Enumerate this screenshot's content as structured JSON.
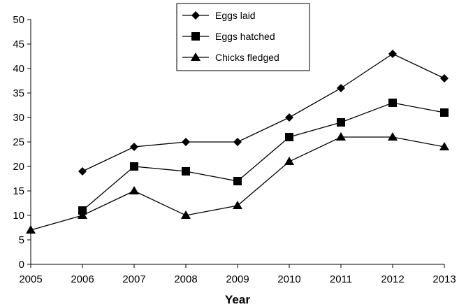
{
  "chart_data": {
    "type": "line",
    "title": "",
    "xlabel": "Year",
    "ylabel": "",
    "x": [
      2005,
      2006,
      2007,
      2008,
      2009,
      2010,
      2011,
      2012,
      2013
    ],
    "xlim": [
      2005,
      2013
    ],
    "ylim": [
      0,
      50
    ],
    "ytick_step": 5,
    "grid": false,
    "legend_position": "top-center",
    "series": [
      {
        "name": "Eggs laid",
        "marker": "diamond",
        "color": "#000000",
        "values": [
          null,
          19,
          24,
          25,
          25,
          30,
          36,
          43,
          38
        ]
      },
      {
        "name": "Eggs hatched",
        "marker": "square",
        "color": "#000000",
        "values": [
          null,
          11,
          20,
          19,
          17,
          26,
          29,
          33,
          31
        ]
      },
      {
        "name": "Chicks fledged",
        "marker": "triangle",
        "color": "#000000",
        "values": [
          7,
          10,
          15,
          10,
          12,
          21,
          26,
          26,
          24
        ]
      }
    ]
  }
}
